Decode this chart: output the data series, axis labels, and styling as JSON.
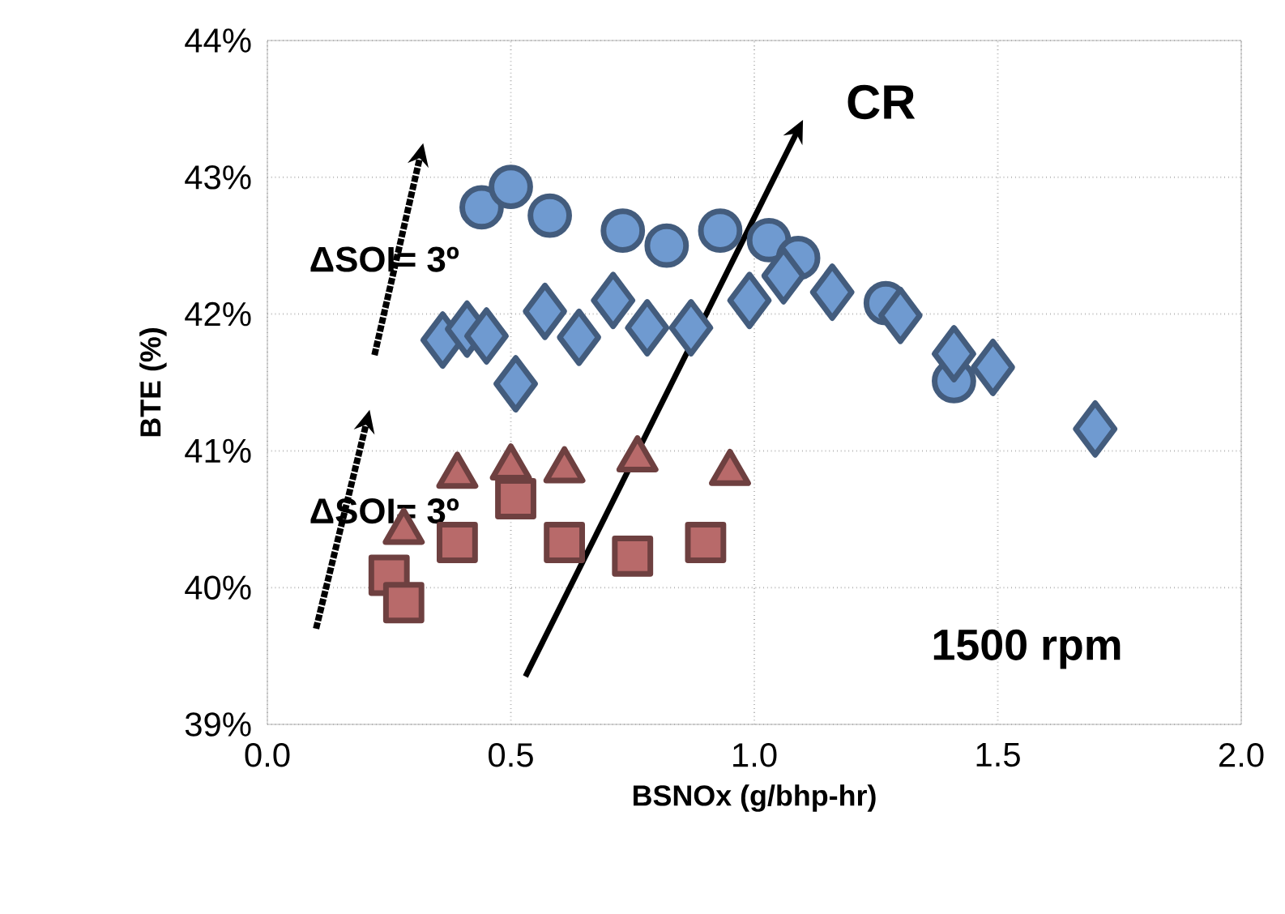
{
  "chart_data": {
    "type": "scatter",
    "xlabel": "BSNOx (g/bhp-hr)",
    "ylabel": "BTE (%)",
    "xlim": [
      0,
      2
    ],
    "xticks": [
      {
        "value": 0,
        "label": "0.0"
      },
      {
        "value": 0.5,
        "label": "0.5"
      },
      {
        "value": 1,
        "label": "1.0"
      },
      {
        "value": 1.5,
        "label": "1.5"
      },
      {
        "value": 2,
        "label": "2.0"
      }
    ],
    "ylim": [
      39,
      44
    ],
    "yticks": [
      {
        "value": 39,
        "label": "39%"
      },
      {
        "value": 40,
        "label": "40%"
      },
      {
        "value": 41,
        "label": "41%"
      },
      {
        "value": 42,
        "label": "42%"
      },
      {
        "value": 43,
        "label": "43%"
      },
      {
        "value": 44,
        "label": "44%"
      }
    ],
    "grid": true,
    "series": [
      {
        "color": "#6f9ad0",
        "marker": "circle",
        "x": [
          0.44,
          0.5,
          0.58,
          0.73,
          0.82,
          0.93,
          1.03,
          1.09,
          1.27,
          1.41
        ],
        "values": [
          42.78,
          42.93,
          42.72,
          42.61,
          42.5,
          42.61,
          42.54,
          42.41,
          42.08,
          41.51
        ]
      },
      {
        "color": "#6f9ad0",
        "marker": "diamond",
        "x": [
          0.36,
          0.41,
          0.45,
          0.51,
          0.57,
          0.64,
          0.71,
          0.78,
          0.87,
          0.99,
          1.06,
          1.16,
          1.3,
          1.41,
          1.49,
          1.7
        ],
        "values": [
          41.81,
          41.89,
          41.84,
          41.49,
          42.02,
          41.83,
          42.1,
          41.9,
          41.9,
          42.1,
          42.28,
          42.16,
          41.99,
          41.71,
          41.61,
          41.16
        ]
      },
      {
        "color": "#b86a6a",
        "marker": "triangle",
        "x": [
          0.28,
          0.39,
          0.5,
          0.61,
          0.76,
          0.95
        ],
        "values": [
          40.41,
          40.82,
          40.88,
          40.86,
          40.94,
          40.84
        ]
      },
      {
        "color": "#b86a6a",
        "marker": "square",
        "x": [
          0.25,
          0.28,
          0.39,
          0.51,
          0.61,
          0.75,
          0.9
        ],
        "values": [
          40.09,
          39.89,
          40.33,
          40.65,
          40.33,
          40.23,
          40.33
        ]
      }
    ],
    "annotations": [
      "CR",
      "ΔSOI= 3º",
      "ΔSOI= 3º",
      "1500 rpm"
    ]
  }
}
